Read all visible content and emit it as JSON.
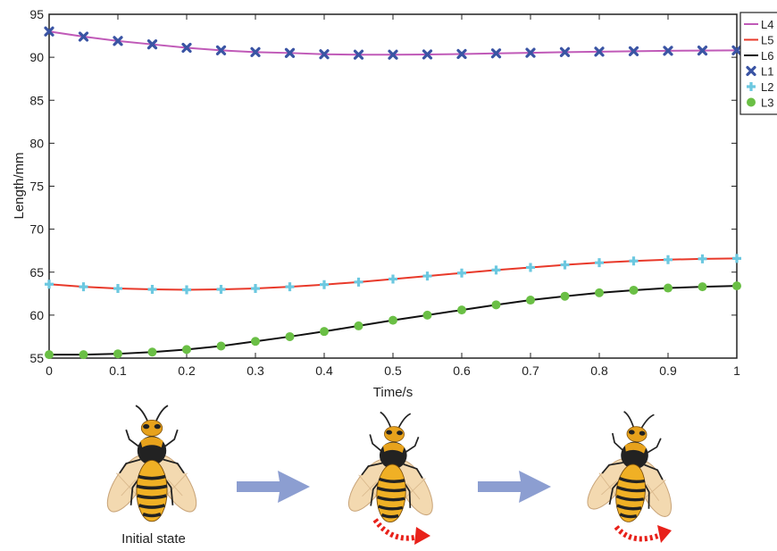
{
  "chart_data": {
    "type": "line",
    "xlabel": "Time/s",
    "ylabel": "Length/mm",
    "xlim": [
      0,
      1
    ],
    "ylim": [
      55,
      95
    ],
    "xticks": [
      "0",
      "0.1",
      "0.2",
      "0.3",
      "0.4",
      "0.5",
      "0.6",
      "0.7",
      "0.8",
      "0.9",
      "1"
    ],
    "yticks": [
      "55",
      "60",
      "65",
      "70",
      "75",
      "80",
      "85",
      "90",
      "95"
    ],
    "grid": false,
    "legend_position": "top-right",
    "x": [
      0,
      0.05,
      0.1,
      0.15,
      0.2,
      0.25,
      0.3,
      0.35,
      0.4,
      0.45,
      0.5,
      0.55,
      0.6,
      0.65,
      0.7,
      0.75,
      0.8,
      0.85,
      0.9,
      0.95,
      1
    ],
    "series": [
      {
        "name": "L4",
        "kind": "line",
        "color": "#c05ab8",
        "values": [
          93.0,
          92.4,
          91.9,
          91.5,
          91.1,
          90.8,
          90.6,
          90.5,
          90.35,
          90.3,
          90.3,
          90.33,
          90.38,
          90.45,
          90.52,
          90.6,
          90.65,
          90.7,
          90.75,
          90.78,
          90.8
        ]
      },
      {
        "name": "L5",
        "kind": "line",
        "color": "#e8392a",
        "values": [
          63.6,
          63.3,
          63.1,
          63.0,
          62.95,
          63.0,
          63.1,
          63.3,
          63.55,
          63.85,
          64.2,
          64.55,
          64.9,
          65.25,
          65.55,
          65.85,
          66.1,
          66.3,
          66.45,
          66.55,
          66.6
        ]
      },
      {
        "name": "L6",
        "kind": "line",
        "color": "#111111",
        "values": [
          55.4,
          55.4,
          55.5,
          55.7,
          56.0,
          56.4,
          56.95,
          57.5,
          58.1,
          58.75,
          59.4,
          60.0,
          60.6,
          61.2,
          61.75,
          62.2,
          62.6,
          62.9,
          63.15,
          63.3,
          63.4
        ]
      },
      {
        "name": "L1",
        "kind": "marker",
        "marker": "x",
        "color": "#3a54a4",
        "values": [
          93.0,
          92.4,
          91.9,
          91.5,
          91.1,
          90.8,
          90.6,
          90.5,
          90.35,
          90.3,
          90.3,
          90.33,
          90.38,
          90.45,
          90.52,
          90.6,
          90.65,
          90.7,
          90.75,
          90.78,
          90.8
        ]
      },
      {
        "name": "L2",
        "kind": "marker",
        "marker": "plus",
        "color": "#6cc8e0",
        "values": [
          63.6,
          63.3,
          63.1,
          63.0,
          62.95,
          63.0,
          63.1,
          63.3,
          63.55,
          63.85,
          64.2,
          64.55,
          64.9,
          65.25,
          65.55,
          65.85,
          66.1,
          66.3,
          66.45,
          66.55,
          66.6
        ]
      },
      {
        "name": "L3",
        "kind": "marker",
        "marker": "circle",
        "color": "#6abf45",
        "values": [
          55.4,
          55.4,
          55.5,
          55.7,
          56.0,
          56.4,
          56.95,
          57.5,
          58.1,
          58.75,
          59.4,
          60.0,
          60.6,
          61.2,
          61.75,
          62.2,
          62.6,
          62.9,
          63.15,
          63.3,
          63.4
        ]
      }
    ]
  },
  "illustration": {
    "caption": "Initial state",
    "stages": [
      "initial",
      "rotating",
      "rotated"
    ],
    "arrow_color": "#7f93cc",
    "rotation_arrow_color": "#e8211a"
  }
}
